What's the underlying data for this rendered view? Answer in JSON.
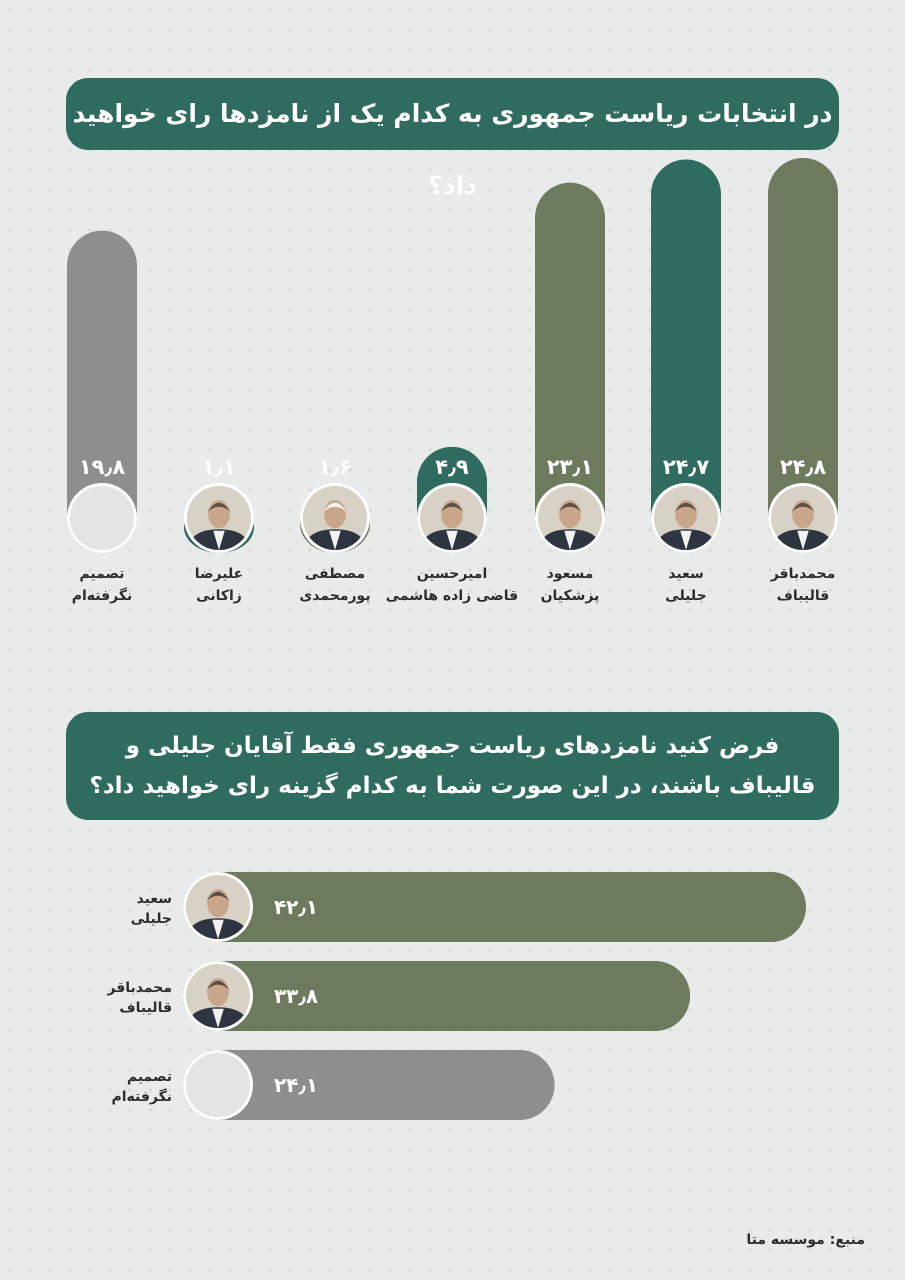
{
  "header": {
    "title1": "در انتخابات ریاست جمهوری به کدام یک از نامزدها رای خواهید داد؟",
    "title2": "فرض کنید نامزدهای ریاست جمهوری فقط آقایان جلیلی و قالیباف باشند، در این صورت شما به کدام گزینه رای خواهید داد؟"
  },
  "footer": {
    "source": "منبع: موسسه متا"
  },
  "colors": {
    "olive": "#6d7a5e",
    "teal": "#2f6b5e",
    "gray": "#8e8e8e",
    "text": "#2c2c2c"
  },
  "chart_data": [
    {
      "type": "bar",
      "orientation": "vertical",
      "categories": [
        [
          "محمدباقر",
          "قالیباف"
        ],
        [
          "سعید",
          "جلیلی"
        ],
        [
          "مسعود",
          "پزشکیان"
        ],
        [
          "امیرحسین",
          "قاضی زاده هاشمی"
        ],
        [
          "مصطفی",
          "پورمحمدی"
        ],
        [
          "علیرضا",
          "زاکانی"
        ],
        [
          "تصمیم",
          "نگرفته‌ام"
        ]
      ],
      "values": [
        24.8,
        24.7,
        23.1,
        4.9,
        1.6,
        1.1,
        19.8
      ],
      "value_labels": [
        "۲۴٫۸",
        "۲۴٫۷",
        "۲۳٫۱",
        "۴٫۹",
        "۱٫۶",
        "۱٫۱",
        "۱۹٫۸"
      ],
      "bar_colors": [
        "olive",
        "teal",
        "olive",
        "teal",
        "olive",
        "teal",
        "gray"
      ],
      "icons": [
        "portrait-ghalibaf-icon",
        "portrait-jalili-icon",
        "portrait-pezeshkian-icon",
        "portrait-ghazizadeh-icon",
        "portrait-pourmohammadi-icon",
        "portrait-zakani-icon",
        "blank-circle-icon"
      ]
    },
    {
      "type": "bar",
      "orientation": "horizontal",
      "categories": [
        [
          "سعید",
          "جلیلی"
        ],
        [
          "محمدباقر",
          "قالیباف"
        ],
        [
          "تصمیم",
          "نگرفته‌ام"
        ]
      ],
      "values": [
        42.1,
        33.8,
        24.1
      ],
      "value_labels": [
        "۴۲٫۱",
        "۳۳٫۸",
        "۲۴٫۱"
      ],
      "bar_colors": [
        "olive",
        "olive",
        "gray"
      ],
      "icons": [
        "portrait-jalili-icon",
        "portrait-ghalibaf-icon",
        "blank-circle-icon"
      ]
    }
  ]
}
